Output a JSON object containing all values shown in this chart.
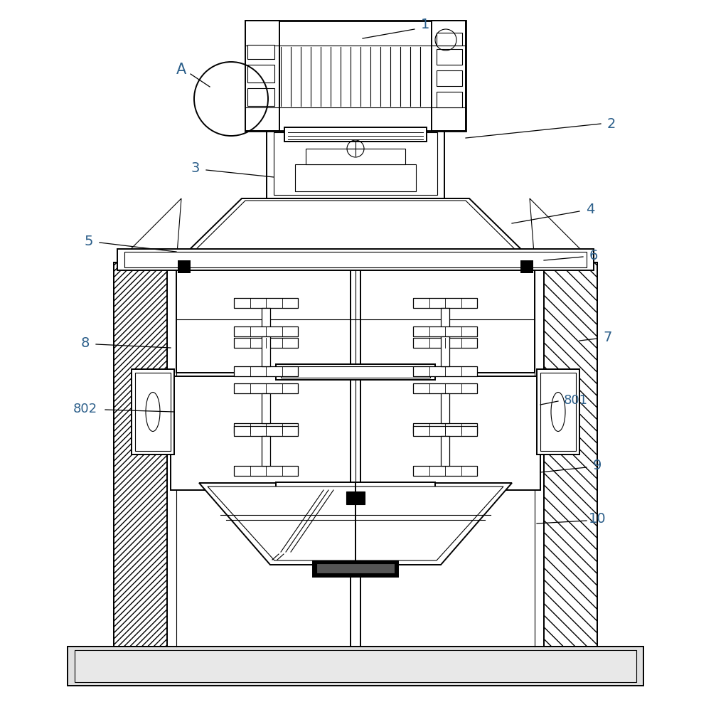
{
  "bg_color": "#ffffff",
  "line_color": "#000000",
  "label_color": "#2c5f8a",
  "fig_width": 10.0,
  "fig_height": 9.95,
  "lw_thin": 0.8,
  "lw_med": 1.4,
  "lw_thick": 2.0
}
